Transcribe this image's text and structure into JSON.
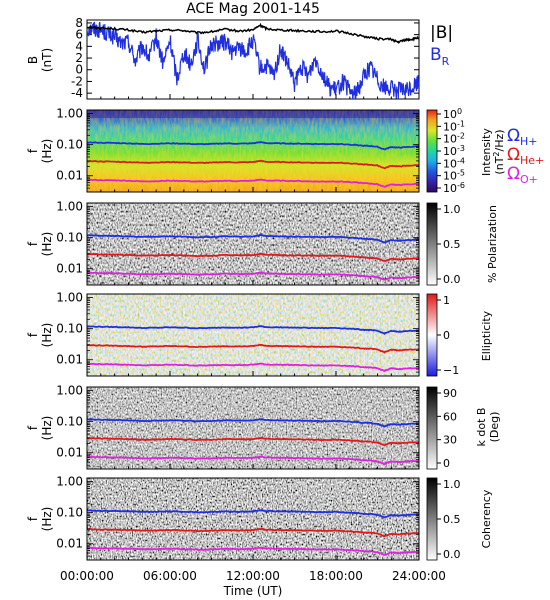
{
  "chart_data": [
    {
      "type": "line",
      "title": "ACE Mag 2001-145",
      "ylabel": "B",
      "yunit": "(nT)",
      "ylim": [
        -5,
        8.5
      ],
      "yticks": [
        -4,
        -2,
        0,
        2,
        4,
        6,
        8
      ],
      "xlim": [
        0,
        24
      ],
      "legend": [
        {
          "text": "|B|",
          "sub": "",
          "color": "#000000"
        },
        {
          "text": "B",
          "sub": "R",
          "color": "#1f2fe0"
        }
      ],
      "series": [
        {
          "name": "|B|",
          "color": "#000000",
          "x": [
            0,
            0.5,
            1,
            2,
            3,
            4,
            5,
            6,
            7,
            8,
            9,
            10,
            11,
            12,
            12.5,
            13,
            14,
            15,
            16,
            17,
            18,
            19,
            20,
            21,
            22,
            22.5,
            23,
            23.5,
            24
          ],
          "values": [
            7.3,
            7.2,
            7.1,
            7.0,
            6.8,
            6.4,
            6.6,
            6.8,
            6.7,
            6.3,
            6.5,
            6.9,
            6.6,
            6.8,
            7.6,
            7.0,
            6.8,
            6.7,
            6.6,
            6.5,
            6.6,
            6.2,
            5.7,
            5.3,
            5.2,
            4.7,
            5.1,
            5.2,
            5.5
          ]
        },
        {
          "name": "B",
          "label_sub": "R",
          "color": "#1f2fe0",
          "x": [
            0,
            0.5,
            1,
            1.5,
            2,
            2.5,
            3,
            3.5,
            4,
            4.5,
            5,
            5.5,
            6,
            6.5,
            7,
            7.5,
            8,
            8.5,
            9,
            9.5,
            10,
            10.5,
            11,
            11.5,
            12,
            12.5,
            13,
            13.5,
            14,
            14.5,
            15,
            15.5,
            16,
            16.5,
            17,
            17.5,
            18,
            18.5,
            19,
            19.5,
            20,
            20.5,
            21,
            21.5,
            22,
            22.5,
            23,
            23.5,
            24
          ],
          "values": [
            7.0,
            7.0,
            6.8,
            6.2,
            5.5,
            4.5,
            4.8,
            1.5,
            4.0,
            2.0,
            5.6,
            1.0,
            5.0,
            -1.5,
            3.0,
            1.0,
            5.0,
            0.0,
            4.5,
            4.5,
            4.8,
            3.0,
            3.8,
            3.0,
            5.0,
            0.2,
            0.5,
            -1.0,
            3.5,
            1.0,
            -2.5,
            0.5,
            -1.0,
            2.0,
            -0.5,
            -3.0,
            -3.5,
            -2.0,
            -3.8,
            -4.0,
            -1.0,
            0.5,
            -1.5,
            -3.0,
            -3.2,
            -3.5,
            -3.6,
            -3.0,
            -2.0
          ]
        }
      ]
    },
    {
      "type": "heatmap",
      "ylabel": "f",
      "yunit": "(Hz)",
      "yscale": "log",
      "ylim": [
        0.003,
        1.3
      ],
      "xlim": [
        0,
        24
      ],
      "yticks": [
        "1.00",
        "0.10",
        "0.01"
      ],
      "colorbar": {
        "palette": "rainbow",
        "ticks": [
          {
            "base": "10",
            "exp": "0"
          },
          {
            "base": "10",
            "exp": "-1"
          },
          {
            "base": "10",
            "exp": "-2"
          },
          {
            "base": "10",
            "exp": "-3"
          },
          {
            "base": "10",
            "exp": "-4"
          },
          {
            "base": "10",
            "exp": "-5"
          },
          {
            "base": "10",
            "exp": "-6"
          }
        ],
        "label": "Intensity",
        "unit_pre": "(nT",
        "unit_exp": "2",
        "unit_post": "/Hz)"
      },
      "side_labels": [
        {
          "text": "Ω",
          "sub": "H+",
          "color": "#1f2fe0"
        },
        {
          "text": "Ω",
          "sub": "He+",
          "color": "#e01a1a"
        },
        {
          "text": "Ω",
          "sub": "O+",
          "color": "#e020e0"
        }
      ]
    },
    {
      "type": "heatmap",
      "ylabel": "f",
      "yunit": "(Hz)",
      "yscale": "log",
      "ylim": [
        0.003,
        1.3
      ],
      "xlim": [
        0,
        24
      ],
      "yticks": [
        "1.00",
        "0.10",
        "0.01"
      ],
      "colorbar": {
        "palette": "gray",
        "ticks": [
          "1.0",
          "0.5",
          "0.0"
        ],
        "label": "% Polarization"
      }
    },
    {
      "type": "heatmap",
      "ylabel": "f",
      "yunit": "(Hz)",
      "yscale": "log",
      "ylim": [
        0.003,
        1.3
      ],
      "xlim": [
        0,
        24
      ],
      "yticks": [
        "1.00",
        "0.10",
        "0.01"
      ],
      "colorbar": {
        "palette": "bwr",
        "ticks": [
          "1",
          "0",
          "−1"
        ],
        "label": "Ellipticity"
      }
    },
    {
      "type": "heatmap",
      "ylabel": "f",
      "yunit": "(Hz)",
      "yscale": "log",
      "ylim": [
        0.003,
        1.3
      ],
      "xlim": [
        0,
        24
      ],
      "yticks": [
        "1.00",
        "0.10",
        "0.01"
      ],
      "colorbar": {
        "palette": "gray",
        "ticks": [
          "90",
          "60",
          "30",
          "0"
        ],
        "label": "k dot B",
        "unit": "(Deg)"
      }
    },
    {
      "type": "heatmap",
      "ylabel": "f",
      "yunit": "(Hz)",
      "yscale": "log",
      "ylim": [
        0.003,
        1.3
      ],
      "xlim": [
        0,
        24
      ],
      "yticks": [
        "1.00",
        "0.10",
        "0.01"
      ],
      "colorbar": {
        "palette": "gray",
        "ticks": [
          "1.0",
          "0.5",
          "0.0"
        ],
        "label": "Coherency"
      }
    }
  ],
  "gyro_lines": [
    {
      "name": "H+",
      "color": "#1f2fe0",
      "x": [
        0,
        1,
        2,
        3,
        4,
        5,
        6,
        7,
        8,
        9,
        10,
        11,
        12,
        12.5,
        13,
        14,
        15,
        16,
        17,
        18,
        19,
        20,
        20.5,
        21,
        21.5,
        22,
        22.5,
        23,
        24
      ],
      "values": [
        0.118,
        0.115,
        0.113,
        0.11,
        0.105,
        0.107,
        0.11,
        0.108,
        0.103,
        0.105,
        0.11,
        0.107,
        0.11,
        0.12,
        0.112,
        0.11,
        0.108,
        0.106,
        0.104,
        0.106,
        0.1,
        0.092,
        0.09,
        0.085,
        0.07,
        0.084,
        0.08,
        0.083,
        0.088
      ]
    },
    {
      "name": "He+",
      "color": "#e01a1a",
      "x": [
        0,
        1,
        2,
        3,
        4,
        5,
        6,
        7,
        8,
        9,
        10,
        11,
        12,
        12.5,
        13,
        14,
        15,
        16,
        17,
        18,
        19,
        20,
        20.5,
        21,
        21.5,
        22,
        22.5,
        23,
        24
      ],
      "values": [
        0.0295,
        0.0288,
        0.0283,
        0.0275,
        0.0263,
        0.0268,
        0.0275,
        0.027,
        0.0258,
        0.0263,
        0.0275,
        0.0268,
        0.0275,
        0.03,
        0.028,
        0.0275,
        0.027,
        0.0265,
        0.026,
        0.0265,
        0.025,
        0.023,
        0.0225,
        0.0213,
        0.0175,
        0.021,
        0.02,
        0.0208,
        0.022
      ]
    },
    {
      "name": "O+",
      "color": "#e020e0",
      "x": [
        0,
        1,
        2,
        3,
        4,
        5,
        6,
        7,
        8,
        9,
        10,
        11,
        12,
        12.5,
        13,
        14,
        15,
        16,
        17,
        18,
        19,
        20,
        20.5,
        21,
        21.5,
        22,
        22.5,
        23,
        24
      ],
      "values": [
        0.0074,
        0.0072,
        0.0071,
        0.0069,
        0.0066,
        0.0067,
        0.0069,
        0.0068,
        0.0065,
        0.0066,
        0.0069,
        0.0067,
        0.0069,
        0.0075,
        0.007,
        0.0069,
        0.0068,
        0.0066,
        0.0065,
        0.0066,
        0.0063,
        0.0058,
        0.0056,
        0.0053,
        0.0044,
        0.0053,
        0.005,
        0.0052,
        0.0055
      ]
    }
  ],
  "xaxis": {
    "ticks": [
      "00:00:00",
      "06:00:00",
      "12:00:00",
      "18:00:00",
      "24:00:00"
    ],
    "tick_hours": [
      0,
      6,
      12,
      18,
      24
    ],
    "label": "Time (UT)"
  }
}
